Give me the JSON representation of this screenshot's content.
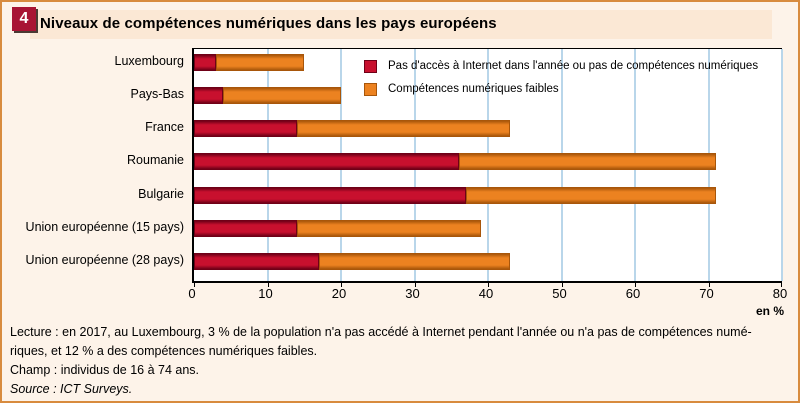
{
  "figure_number": "4",
  "title": "Niveaux de compétences numériques dans les pays européens",
  "chart_data": {
    "type": "bar",
    "orientation": "horizontal",
    "stacked": true,
    "categories": [
      "Luxembourg",
      "Pays-Bas",
      "France",
      "Roumanie",
      "Bulgarie",
      "Union européenne (15 pays)",
      "Union européenne (28 pays)"
    ],
    "series": [
      {
        "name": "Pas d'accès à Internet dans l'année ou pas de compétences numériques",
        "values": [
          3,
          4,
          14,
          36,
          37,
          14,
          17
        ],
        "color": "#c8102e",
        "edge_color": "#6f0017"
      },
      {
        "name": "Compétences numériques faibles",
        "values": [
          12,
          16,
          29,
          35,
          34,
          25,
          26
        ],
        "color": "#ec8220",
        "edge_color": "#a8560a"
      }
    ],
    "totals": [
      15,
      20,
      43,
      71,
      71,
      39,
      43
    ],
    "xlim": [
      0,
      80
    ],
    "xticks": [
      "0",
      "10",
      "20",
      "30",
      "40",
      "50",
      "60",
      "70",
      "80"
    ],
    "unit_label": "en %",
    "grid": "vertical-light-blue",
    "legend_position": "top-right-inside"
  },
  "footer": {
    "lecture_line1": "Lecture : en 2017, au Luxembourg, 3 % de la population n'a pas accédé à Internet pendant l'année ou n'a pas de compétences numé-",
    "lecture_line2": "riques, et 12 % a des compétences numériques faibles.",
    "champ": "Champ : individus de 16 à 74 ans.",
    "source": "Source : ICT Surveys."
  },
  "colors": {
    "figure_bg": "#fdf3e9",
    "band_bg": "#fbe8d5",
    "badge_bg": "#a81434",
    "border_color": "#d88b3e",
    "gridline": "#b9d6ea"
  }
}
